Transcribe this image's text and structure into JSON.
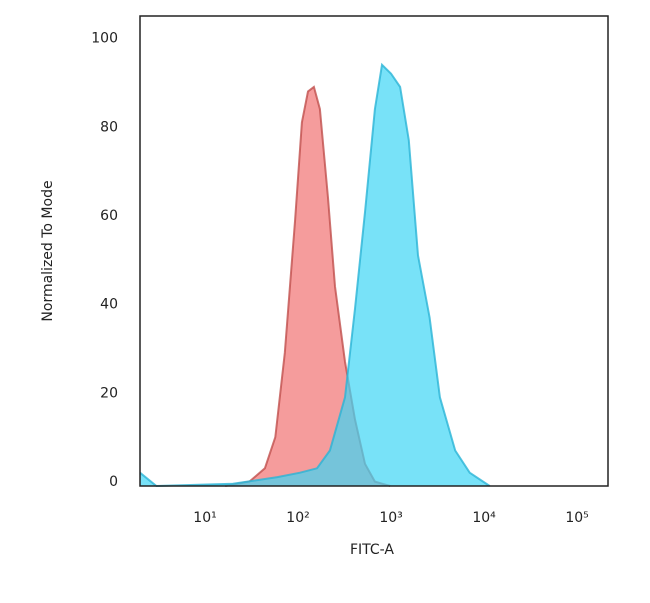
{
  "chart_data": {
    "type": "area",
    "xlabel": "FITC-A",
    "ylabel": "Normalized To Mode",
    "xscale": "log",
    "xlim": [
      2,
      215000
    ],
    "ylim": [
      0,
      106
    ],
    "xticks": [
      {
        "value": 10,
        "label": "10¹"
      },
      {
        "value": 100,
        "label": "10²"
      },
      {
        "value": 1000,
        "label": "10³"
      },
      {
        "value": 10000,
        "label": "10⁴"
      },
      {
        "value": 100000,
        "label": "10⁵"
      }
    ],
    "yticks": [
      0,
      20,
      40,
      60,
      80,
      100
    ],
    "series": [
      {
        "color": "#f27b7b",
        "line_color": "#c0504d",
        "x": [
          16.5,
          30,
          44,
          57,
          72,
          93,
          110,
          128,
          148,
          172,
          210,
          250,
          320,
          410,
          525,
          670,
          980
        ],
        "values": [
          0,
          1,
          4,
          11,
          30,
          60,
          82,
          89,
          90,
          85,
          65,
          45,
          28,
          15,
          5,
          1,
          0
        ]
      },
      {
        "color": "#3fd6f5",
        "line_color": "#2ab4d6",
        "x": [
          2,
          3,
          20,
          60,
          105,
          160,
          220,
          320,
          410,
          526,
          670,
          800,
          1000,
          1250,
          1550,
          1950,
          2600,
          3350,
          4900,
          7000,
          11500
        ],
        "values": [
          3,
          0,
          0.5,
          2,
          3,
          4,
          8,
          20,
          40,
          62,
          85,
          95,
          93,
          90,
          78,
          52,
          38,
          20,
          8,
          3,
          0
        ]
      }
    ]
  }
}
